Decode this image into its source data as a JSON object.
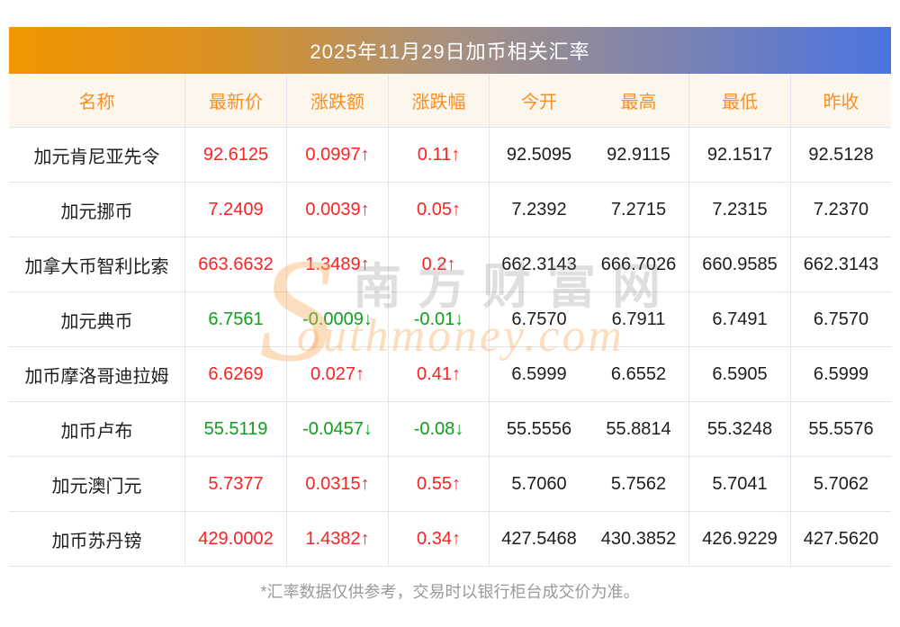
{
  "page": {
    "title": "2025年11月29日加币相关汇率",
    "footnote": "*汇率数据仅供参考，交易时以银行柜台成交价为准。",
    "watermark": {
      "logo_s": "S",
      "site_cn": "南方财富网",
      "site_en_rest": "outhmoney.com"
    }
  },
  "colors": {
    "title_gradient_left": "#f29500",
    "title_gradient_right": "#4b74e0",
    "header_bg": "#fdf6ed",
    "header_text": "#fb8f22",
    "up_red": "#fa2323",
    "down_green": "#0f9e1f",
    "grid_line": "#e4e4ee",
    "footnote_gray": "#9a9a9a"
  },
  "table": {
    "headers": [
      "名称",
      "最新价",
      "涨跌额",
      "涨跌幅",
      "今开",
      "最高",
      "最低",
      "昨收"
    ],
    "rows": [
      {
        "name": "加元肯尼亚先令",
        "latest": "92.6125",
        "change": "0.0997↑",
        "change_pct": "0.11↑",
        "open": "92.5095",
        "high": "92.9115",
        "low": "92.1517",
        "prev_close": "92.5128",
        "direction": "up"
      },
      {
        "name": "加元挪币",
        "latest": "7.2409",
        "change": "0.0039↑",
        "change_pct": "0.05↑",
        "open": "7.2392",
        "high": "7.2715",
        "low": "7.2315",
        "prev_close": "7.2370",
        "direction": "up"
      },
      {
        "name": "加拿大币智利比索",
        "latest": "663.6632",
        "change": "1.3489↑",
        "change_pct": "0.2↑",
        "open": "662.3143",
        "high": "666.7026",
        "low": "660.9585",
        "prev_close": "662.3143",
        "direction": "up"
      },
      {
        "name": "加元典币",
        "latest": "6.7561",
        "change": "-0.0009↓",
        "change_pct": "-0.01↓",
        "open": "6.7570",
        "high": "6.7911",
        "low": "6.7491",
        "prev_close": "6.7570",
        "direction": "down"
      },
      {
        "name": "加币摩洛哥迪拉姆",
        "latest": "6.6269",
        "change": "0.027↑",
        "change_pct": "0.41↑",
        "open": "6.5999",
        "high": "6.6552",
        "low": "6.5905",
        "prev_close": "6.5999",
        "direction": "up"
      },
      {
        "name": "加币卢布",
        "latest": "55.5119",
        "change": "-0.0457↓",
        "change_pct": "-0.08↓",
        "open": "55.5556",
        "high": "55.8814",
        "low": "55.3248",
        "prev_close": "55.5576",
        "direction": "down"
      },
      {
        "name": "加元澳门元",
        "latest": "5.7377",
        "change": "0.0315↑",
        "change_pct": "0.55↑",
        "open": "5.7060",
        "high": "5.7562",
        "low": "5.7041",
        "prev_close": "5.7062",
        "direction": "up"
      },
      {
        "name": "加币苏丹镑",
        "latest": "429.0002",
        "change": "1.4382↑",
        "change_pct": "0.34↑",
        "open": "427.5468",
        "high": "430.3852",
        "low": "426.9229",
        "prev_close": "427.5620",
        "direction": "up"
      }
    ]
  },
  "chart_data": {
    "type": "table",
    "title": "2025年11月29日加币相关汇率",
    "columns": [
      "名称",
      "最新价",
      "涨跌额",
      "涨跌幅",
      "今开",
      "最高",
      "最低",
      "昨收"
    ],
    "rows": [
      [
        "加元肯尼亚先令",
        "92.6125",
        "0.0997↑",
        "0.11↑",
        "92.5095",
        "92.9115",
        "92.1517",
        "92.5128"
      ],
      [
        "加元挪币",
        "7.2409",
        "0.0039↑",
        "0.05↑",
        "7.2392",
        "7.2715",
        "7.2315",
        "7.2370"
      ],
      [
        "加拿大币智利比索",
        "663.6632",
        "1.3489↑",
        "0.2↑",
        "662.3143",
        "666.7026",
        "660.9585",
        "662.3143"
      ],
      [
        "加元典币",
        "6.7561",
        "-0.0009↓",
        "-0.01↓",
        "6.7570",
        "6.7911",
        "6.7491",
        "6.7570"
      ],
      [
        "加币摩洛哥迪拉姆",
        "6.6269",
        "0.027↑",
        "0.41↑",
        "6.5999",
        "6.6552",
        "6.5905",
        "6.5999"
      ],
      [
        "加币卢布",
        "55.5119",
        "-0.0457↓",
        "-0.08↓",
        "55.5556",
        "55.8814",
        "55.3248",
        "55.5576"
      ],
      [
        "加元澳门元",
        "5.7377",
        "0.0315↑",
        "0.55↑",
        "5.7060",
        "5.7562",
        "5.7041",
        "5.7062"
      ],
      [
        "加币苏丹镑",
        "429.0002",
        "1.4382↑",
        "0.34↑",
        "427.5468",
        "430.3852",
        "426.9229",
        "427.5620"
      ]
    ],
    "notes": "红色=上涨(up), 绿色=下跌(down); 仅 加元典币 与 加币卢布 下跌"
  }
}
